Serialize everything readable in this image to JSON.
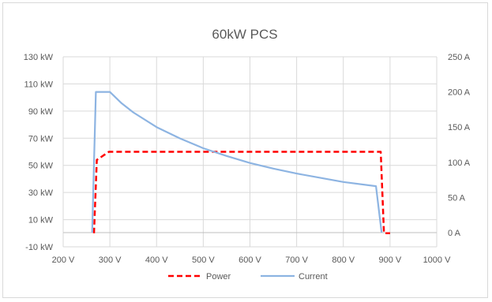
{
  "chart_data": {
    "type": "line",
    "title": "60kW PCS",
    "xlabel": "",
    "x_ticks": [
      "200 V",
      "300 V",
      "400 V",
      "500 V",
      "600 V",
      "700 V",
      "800 V",
      "900 V",
      "1000 V"
    ],
    "xlim": [
      200,
      1000
    ],
    "y_left": {
      "ticks": [
        "130 kW",
        "110 kW",
        "90 kW",
        "70 kW",
        "50 kW",
        "30 kW",
        "10 kW",
        "-10 kW"
      ],
      "ylim": [
        -10,
        130
      ],
      "unit": "kW"
    },
    "y_right": {
      "ticks": [
        "250 A",
        "200 A",
        "150 A",
        "100 A",
        "50 A",
        "0 A"
      ],
      "ylim": [
        0,
        250
      ],
      "unit": "A"
    },
    "grid": true,
    "legend_position": "bottom",
    "series": [
      {
        "name": "Power",
        "axis": "left",
        "color": "#ff0000",
        "style": "dashed",
        "x": [
          266,
          272,
          298,
          880,
          887,
          900
        ],
        "y": [
          0,
          54,
          60,
          60,
          0,
          0
        ]
      },
      {
        "name": "Current",
        "axis": "right",
        "color": "#8db4e2",
        "style": "solid",
        "x": [
          262,
          270,
          300,
          325,
          350,
          400,
          450,
          500,
          550,
          600,
          650,
          700,
          750,
          800,
          870,
          882
        ],
        "y": [
          0,
          200,
          200,
          184,
          171,
          150,
          134,
          120,
          109,
          99,
          91,
          84,
          78,
          72,
          66,
          0
        ]
      }
    ]
  }
}
